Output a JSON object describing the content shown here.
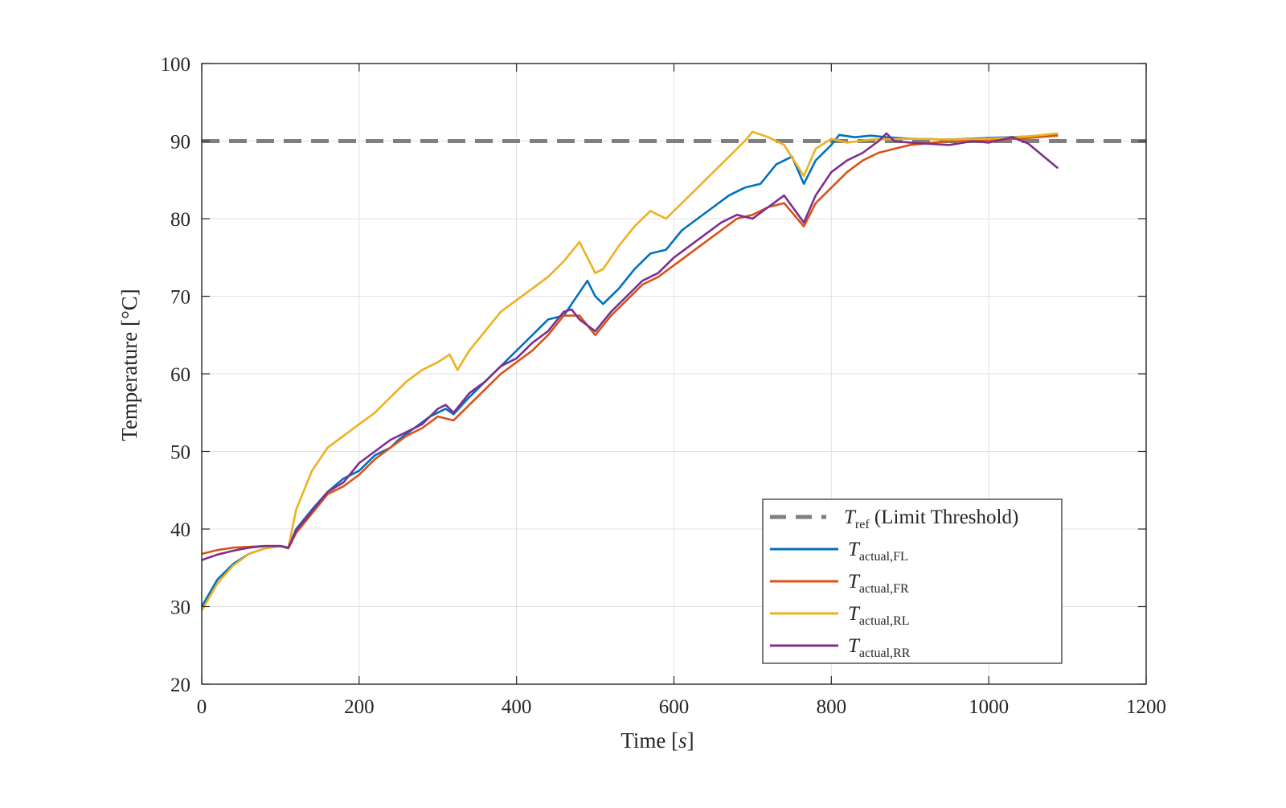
{
  "chart_data": {
    "type": "line",
    "xlabel": "Time [s]",
    "xlabel_parts": {
      "main": "Time [",
      "unit": "s",
      "close": "]"
    },
    "ylabel": "Temperature [°C]",
    "xlim": [
      0,
      1200
    ],
    "ylim": [
      20,
      100
    ],
    "xticks": [
      0,
      200,
      400,
      600,
      800,
      1000,
      1200
    ],
    "yticks": [
      20,
      30,
      40,
      50,
      60,
      70,
      80,
      90,
      100
    ],
    "x_tick_labels": [
      "0",
      "200",
      "400",
      "600",
      "800",
      "1000",
      "1200"
    ],
    "y_tick_labels": [
      "20",
      "30",
      "40",
      "50",
      "60",
      "70",
      "80",
      "90",
      "100"
    ],
    "grid": true,
    "legend_position": "bottom-right",
    "reference_line": {
      "y": 90,
      "style": "dashed",
      "color": "#7f7f7f",
      "label_main": "T",
      "label_sub": "ref",
      "label_rest": " (Limit Threshold)"
    },
    "series": [
      {
        "name": "T actual,FL",
        "label_main": "T",
        "label_sub": "actual,FL",
        "color": "#0072BD",
        "points": [
          [
            0,
            30
          ],
          [
            20,
            33.5
          ],
          [
            40,
            35.5
          ],
          [
            60,
            36.8
          ],
          [
            80,
            37.5
          ],
          [
            100,
            37.8
          ],
          [
            110,
            37.6
          ],
          [
            120,
            40
          ],
          [
            140,
            42.5
          ],
          [
            160,
            44.8
          ],
          [
            180,
            46.5
          ],
          [
            200,
            47.5
          ],
          [
            220,
            49.5
          ],
          [
            240,
            50.5
          ],
          [
            250,
            51.5
          ],
          [
            270,
            53
          ],
          [
            290,
            54.5
          ],
          [
            310,
            55.5
          ],
          [
            320,
            54.8
          ],
          [
            340,
            57
          ],
          [
            360,
            59
          ],
          [
            380,
            61
          ],
          [
            400,
            63
          ],
          [
            420,
            65
          ],
          [
            440,
            67
          ],
          [
            460,
            67.5
          ],
          [
            480,
            70.5
          ],
          [
            490,
            72
          ],
          [
            500,
            70
          ],
          [
            510,
            69
          ],
          [
            530,
            71
          ],
          [
            550,
            73.5
          ],
          [
            570,
            75.5
          ],
          [
            590,
            76
          ],
          [
            610,
            78.5
          ],
          [
            630,
            80
          ],
          [
            650,
            81.5
          ],
          [
            670,
            83
          ],
          [
            690,
            84
          ],
          [
            710,
            84.5
          ],
          [
            730,
            87
          ],
          [
            750,
            88
          ],
          [
            765,
            84.5
          ],
          [
            780,
            87.5
          ],
          [
            800,
            89.5
          ],
          [
            810,
            90.8
          ],
          [
            830,
            90.5
          ],
          [
            850,
            90.7
          ],
          [
            870,
            90.5
          ],
          [
            900,
            90.3
          ],
          [
            950,
            90.2
          ],
          [
            1000,
            90.4
          ],
          [
            1050,
            90.6
          ],
          [
            1088,
            90.8
          ]
        ]
      },
      {
        "name": "T actual,FR",
        "label_main": "T",
        "label_sub": "actual,FR",
        "color": "#D95319",
        "points": [
          [
            0,
            36.8
          ],
          [
            20,
            37.3
          ],
          [
            40,
            37.6
          ],
          [
            60,
            37.7
          ],
          [
            80,
            37.8
          ],
          [
            100,
            37.8
          ],
          [
            110,
            37.5
          ],
          [
            120,
            39.5
          ],
          [
            140,
            42
          ],
          [
            160,
            44.5
          ],
          [
            180,
            45.5
          ],
          [
            200,
            47
          ],
          [
            220,
            49
          ],
          [
            240,
            50.5
          ],
          [
            260,
            52
          ],
          [
            280,
            53
          ],
          [
            300,
            54.5
          ],
          [
            320,
            54
          ],
          [
            340,
            56
          ],
          [
            360,
            58
          ],
          [
            380,
            60
          ],
          [
            400,
            61.5
          ],
          [
            420,
            63
          ],
          [
            440,
            65
          ],
          [
            460,
            67.5
          ],
          [
            480,
            67.5
          ],
          [
            500,
            65
          ],
          [
            520,
            67.5
          ],
          [
            540,
            69.5
          ],
          [
            560,
            71.5
          ],
          [
            580,
            72.5
          ],
          [
            600,
            74
          ],
          [
            620,
            75.5
          ],
          [
            640,
            77
          ],
          [
            660,
            78.5
          ],
          [
            680,
            80
          ],
          [
            700,
            80.5
          ],
          [
            720,
            81.5
          ],
          [
            740,
            82
          ],
          [
            765,
            79
          ],
          [
            780,
            82
          ],
          [
            800,
            84
          ],
          [
            820,
            86
          ],
          [
            840,
            87.5
          ],
          [
            860,
            88.5
          ],
          [
            880,
            89
          ],
          [
            900,
            89.5
          ],
          [
            920,
            89.7
          ],
          [
            950,
            90
          ],
          [
            980,
            90
          ],
          [
            1000,
            90.1
          ],
          [
            1050,
            90.4
          ],
          [
            1088,
            90.7
          ]
        ]
      },
      {
        "name": "T actual,RL",
        "label_main": "T",
        "label_sub": "actual,RL",
        "color": "#EDB120",
        "points": [
          [
            0,
            29.5
          ],
          [
            20,
            33
          ],
          [
            40,
            35.3
          ],
          [
            60,
            36.8
          ],
          [
            80,
            37.5
          ],
          [
            100,
            37.8
          ],
          [
            110,
            37.6
          ],
          [
            120,
            42.5
          ],
          [
            140,
            47.5
          ],
          [
            160,
            50.5
          ],
          [
            180,
            52
          ],
          [
            200,
            53.5
          ],
          [
            220,
            55
          ],
          [
            240,
            57
          ],
          [
            260,
            59
          ],
          [
            280,
            60.5
          ],
          [
            300,
            61.5
          ],
          [
            315,
            62.5
          ],
          [
            325,
            60.5
          ],
          [
            340,
            63
          ],
          [
            360,
            65.5
          ],
          [
            380,
            68
          ],
          [
            400,
            69.5
          ],
          [
            420,
            71
          ],
          [
            440,
            72.5
          ],
          [
            460,
            74.5
          ],
          [
            480,
            77
          ],
          [
            490,
            75
          ],
          [
            500,
            73
          ],
          [
            510,
            73.5
          ],
          [
            530,
            76.5
          ],
          [
            550,
            79
          ],
          [
            570,
            81
          ],
          [
            590,
            80
          ],
          [
            610,
            82
          ],
          [
            630,
            84
          ],
          [
            650,
            86
          ],
          [
            670,
            88
          ],
          [
            690,
            90
          ],
          [
            700,
            91.2
          ],
          [
            720,
            90.5
          ],
          [
            740,
            89.5
          ],
          [
            765,
            85.5
          ],
          [
            780,
            89
          ],
          [
            800,
            90.3
          ],
          [
            820,
            89.8
          ],
          [
            850,
            90.2
          ],
          [
            900,
            90.3
          ],
          [
            950,
            90.2
          ],
          [
            1000,
            90.3
          ],
          [
            1050,
            90.6
          ],
          [
            1088,
            91
          ]
        ]
      },
      {
        "name": "T actual,RR",
        "label_main": "T",
        "label_sub": "actual,RR",
        "color": "#7E2F8E",
        "points": [
          [
            0,
            36
          ],
          [
            20,
            36.7
          ],
          [
            40,
            37.2
          ],
          [
            60,
            37.6
          ],
          [
            80,
            37.8
          ],
          [
            100,
            37.8
          ],
          [
            110,
            37.6
          ],
          [
            120,
            39.8
          ],
          [
            140,
            42.3
          ],
          [
            160,
            44.8
          ],
          [
            180,
            46
          ],
          [
            200,
            48.5
          ],
          [
            220,
            50
          ],
          [
            240,
            51.5
          ],
          [
            260,
            52.5
          ],
          [
            280,
            53.5
          ],
          [
            300,
            55.5
          ],
          [
            310,
            56
          ],
          [
            320,
            55
          ],
          [
            340,
            57.5
          ],
          [
            360,
            59
          ],
          [
            380,
            61
          ],
          [
            400,
            62
          ],
          [
            420,
            64
          ],
          [
            440,
            65.5
          ],
          [
            460,
            68
          ],
          [
            470,
            68.3
          ],
          [
            480,
            67
          ],
          [
            500,
            65.5
          ],
          [
            520,
            68
          ],
          [
            540,
            70
          ],
          [
            560,
            72
          ],
          [
            580,
            73
          ],
          [
            600,
            75
          ],
          [
            620,
            76.5
          ],
          [
            640,
            78
          ],
          [
            660,
            79.5
          ],
          [
            680,
            80.5
          ],
          [
            700,
            80
          ],
          [
            720,
            81.5
          ],
          [
            740,
            83
          ],
          [
            765,
            79.5
          ],
          [
            780,
            83
          ],
          [
            800,
            86
          ],
          [
            820,
            87.5
          ],
          [
            840,
            88.5
          ],
          [
            860,
            90
          ],
          [
            870,
            91
          ],
          [
            880,
            90
          ],
          [
            900,
            89.8
          ],
          [
            950,
            89.5
          ],
          [
            980,
            90
          ],
          [
            1000,
            89.8
          ],
          [
            1030,
            90.5
          ],
          [
            1050,
            89.7
          ],
          [
            1070,
            88
          ],
          [
            1088,
            86.5
          ]
        ]
      }
    ]
  }
}
